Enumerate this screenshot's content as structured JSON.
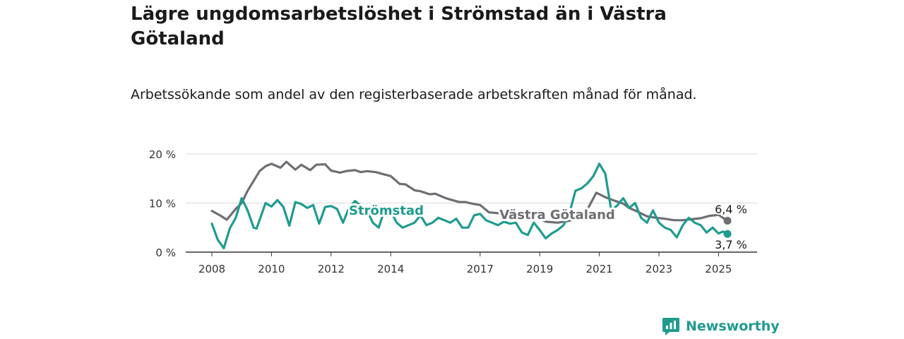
{
  "title": "Lägre ungdomsarbetslöshet i Strömstad än i Västra Götaland",
  "subtitle": "Arbetssökande som andel av den registerbaserade arbetskraften månad för månad.",
  "brand": "Newsworthy",
  "colors": {
    "stromstad": "#1f9b8e",
    "vastra_gotaland": "#6e6e73",
    "grid": "#d9d9d9",
    "axis": "#333333",
    "brand": "#1f9b8e"
  },
  "chart_data": {
    "type": "line",
    "y_unit": "%",
    "ylim": [
      0,
      20
    ],
    "y_ticks": [
      {
        "value": 0,
        "label": "0 %"
      },
      {
        "value": 10,
        "label": "10 %"
      },
      {
        "value": 20,
        "label": "20 %"
      }
    ],
    "x_ticks": [
      {
        "value": 2008,
        "label": "2008"
      },
      {
        "value": 2010,
        "label": "2010"
      },
      {
        "value": 2012,
        "label": "2012"
      },
      {
        "value": 2014,
        "label": "2014"
      },
      {
        "value": 2017,
        "label": "2017"
      },
      {
        "value": 2019,
        "label": "2019"
      },
      {
        "value": 2021,
        "label": "2021"
      },
      {
        "value": 2023,
        "label": "2023"
      },
      {
        "value": 2025,
        "label": "2025"
      }
    ],
    "grid": "horizontal",
    "series": [
      {
        "name": "Västra Götaland",
        "color_key": "vastra_gotaland",
        "end_label": "6,4 %",
        "x": [
          2008.0,
          2008.3,
          2008.5,
          2008.8,
          2009.0,
          2009.2,
          2009.4,
          2009.6,
          2009.8,
          2010.0,
          2010.3,
          2010.5,
          2010.8,
          2011.0,
          2011.3,
          2011.5,
          2011.8,
          2012.0,
          2012.3,
          2012.5,
          2012.8,
          2013.0,
          2013.2,
          2013.5,
          2013.8,
          2014.0,
          2014.3,
          2014.5,
          2014.8,
          2015.0,
          2015.3,
          2015.5,
          2015.8,
          2016.0,
          2016.3,
          2016.5,
          2016.8,
          2017.0,
          2017.3,
          2018.9,
          2019.2,
          2019.6,
          2020.0,
          2020.3,
          2020.6,
          2020.9,
          2021.2,
          2021.5,
          2021.8,
          2022.0,
          2022.3,
          2022.6,
          2022.9,
          2023.2,
          2023.5,
          2023.8,
          2024.1,
          2024.4,
          2024.7,
          2025.0,
          2025.15,
          2025.3
        ],
        "y": [
          8.4,
          7.4,
          6.6,
          8.8,
          10.0,
          12.5,
          14.5,
          16.5,
          17.5,
          18.0,
          17.2,
          18.4,
          16.8,
          17.8,
          16.7,
          17.8,
          17.9,
          16.6,
          16.2,
          16.5,
          16.7,
          16.3,
          16.5,
          16.3,
          15.8,
          15.5,
          13.9,
          13.8,
          12.6,
          12.4,
          11.8,
          11.9,
          11.1,
          10.7,
          10.2,
          10.2,
          9.8,
          9.6,
          8.1,
          7.2,
          6.2,
          6.0,
          6.4,
          6.9,
          8.7,
          12.1,
          11.2,
          10.5,
          9.9,
          9.0,
          8.2,
          7.3,
          7.0,
          6.8,
          6.5,
          6.5,
          6.7,
          6.9,
          7.4,
          7.6,
          7.0,
          6.4
        ]
      },
      {
        "name": "Strömstad",
        "color_key": "stromstad",
        "end_label": "3,7 %",
        "x": [
          2008.0,
          2008.2,
          2008.4,
          2008.6,
          2008.8,
          2009.0,
          2009.2,
          2009.4,
          2009.5,
          2009.8,
          2010.0,
          2010.2,
          2010.4,
          2010.6,
          2010.8,
          2011.0,
          2011.2,
          2011.4,
          2011.6,
          2011.8,
          2012.0,
          2012.2,
          2012.4,
          2012.6,
          2012.8,
          2013.0,
          2013.2,
          2013.4,
          2013.6,
          2013.8,
          2014.0,
          2014.2,
          2014.4,
          2014.6,
          2014.8,
          2015.0,
          2015.2,
          2015.4,
          2015.6,
          2015.8,
          2016.0,
          2016.2,
          2016.4,
          2016.6,
          2016.8,
          2017.0,
          2017.2,
          2017.4,
          2017.6,
          2017.8,
          2018.0,
          2018.2,
          2018.4,
          2018.6,
          2018.8,
          2019.0,
          2019.2,
          2019.4,
          2019.6,
          2019.8,
          2020.0,
          2020.2,
          2020.4,
          2020.6,
          2020.8,
          2021.0,
          2021.2,
          2021.4,
          2021.6,
          2021.8,
          2022.0,
          2022.2,
          2022.4,
          2022.6,
          2022.8,
          2023.0,
          2023.2,
          2023.4,
          2023.6,
          2023.8,
          2024.0,
          2024.2,
          2024.4,
          2024.6,
          2024.8,
          2025.0,
          2025.15,
          2025.3
        ],
        "y": [
          5.8,
          2.5,
          0.8,
          4.8,
          7.0,
          11.0,
          8.5,
          5.0,
          4.8,
          10.0,
          9.3,
          10.6,
          9.2,
          5.4,
          10.2,
          9.8,
          9.0,
          9.6,
          5.8,
          9.2,
          9.4,
          8.8,
          6.0,
          9.0,
          10.4,
          9.5,
          8.6,
          6.0,
          5.0,
          8.8,
          8.5,
          6.0,
          5.0,
          5.5,
          6.0,
          7.5,
          5.5,
          6.0,
          7.0,
          6.5,
          6.0,
          6.8,
          5.0,
          5.0,
          7.5,
          7.8,
          6.5,
          6.0,
          5.5,
          6.2,
          5.8,
          6.0,
          4.0,
          3.5,
          6.0,
          4.5,
          2.8,
          3.8,
          4.5,
          5.5,
          8.0,
          12.5,
          13.0,
          14.0,
          15.5,
          18.0,
          16.0,
          8.5,
          9.5,
          11.0,
          9.0,
          10.0,
          7.0,
          6.0,
          8.5,
          6.0,
          5.0,
          4.5,
          3.0,
          5.5,
          7.0,
          6.0,
          5.5,
          4.0,
          5.0,
          3.8,
          4.2,
          3.7
        ]
      }
    ]
  }
}
